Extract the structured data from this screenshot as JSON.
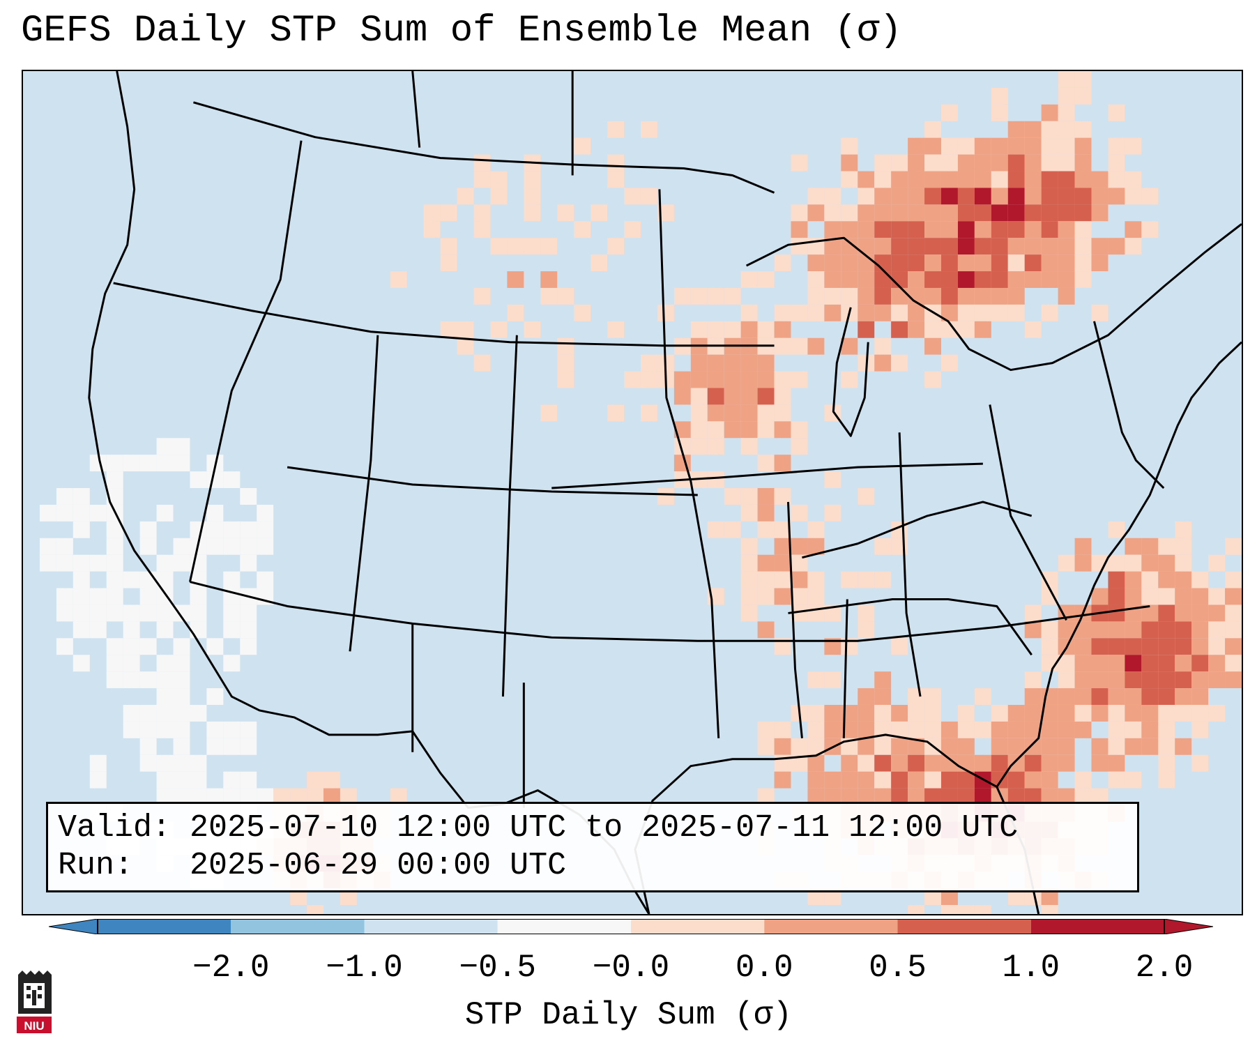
{
  "title": "GEFS Daily STP Sum of Ensemble Mean (σ)",
  "info": {
    "valid_line": "Valid: 2025-07-10 12:00 UTC to 2025-07-11 12:00 UTC",
    "run_line": "Run:   2025-06-29 00:00 UTC"
  },
  "colorbar": {
    "label": "STP Daily Sum (σ)",
    "ticks": [
      "−2.0",
      "−1.0",
      "−0.5",
      "−0.0",
      "0.0",
      "0.5",
      "1.0",
      "2.0"
    ],
    "colors": [
      "#3f86c0",
      "#92c3df",
      "#cfe2f0",
      "#f7f7f7",
      "#fcdccb",
      "#f0a384",
      "#d5604e",
      "#b2182b"
    ]
  },
  "logo": {
    "text": "NIU"
  }
}
